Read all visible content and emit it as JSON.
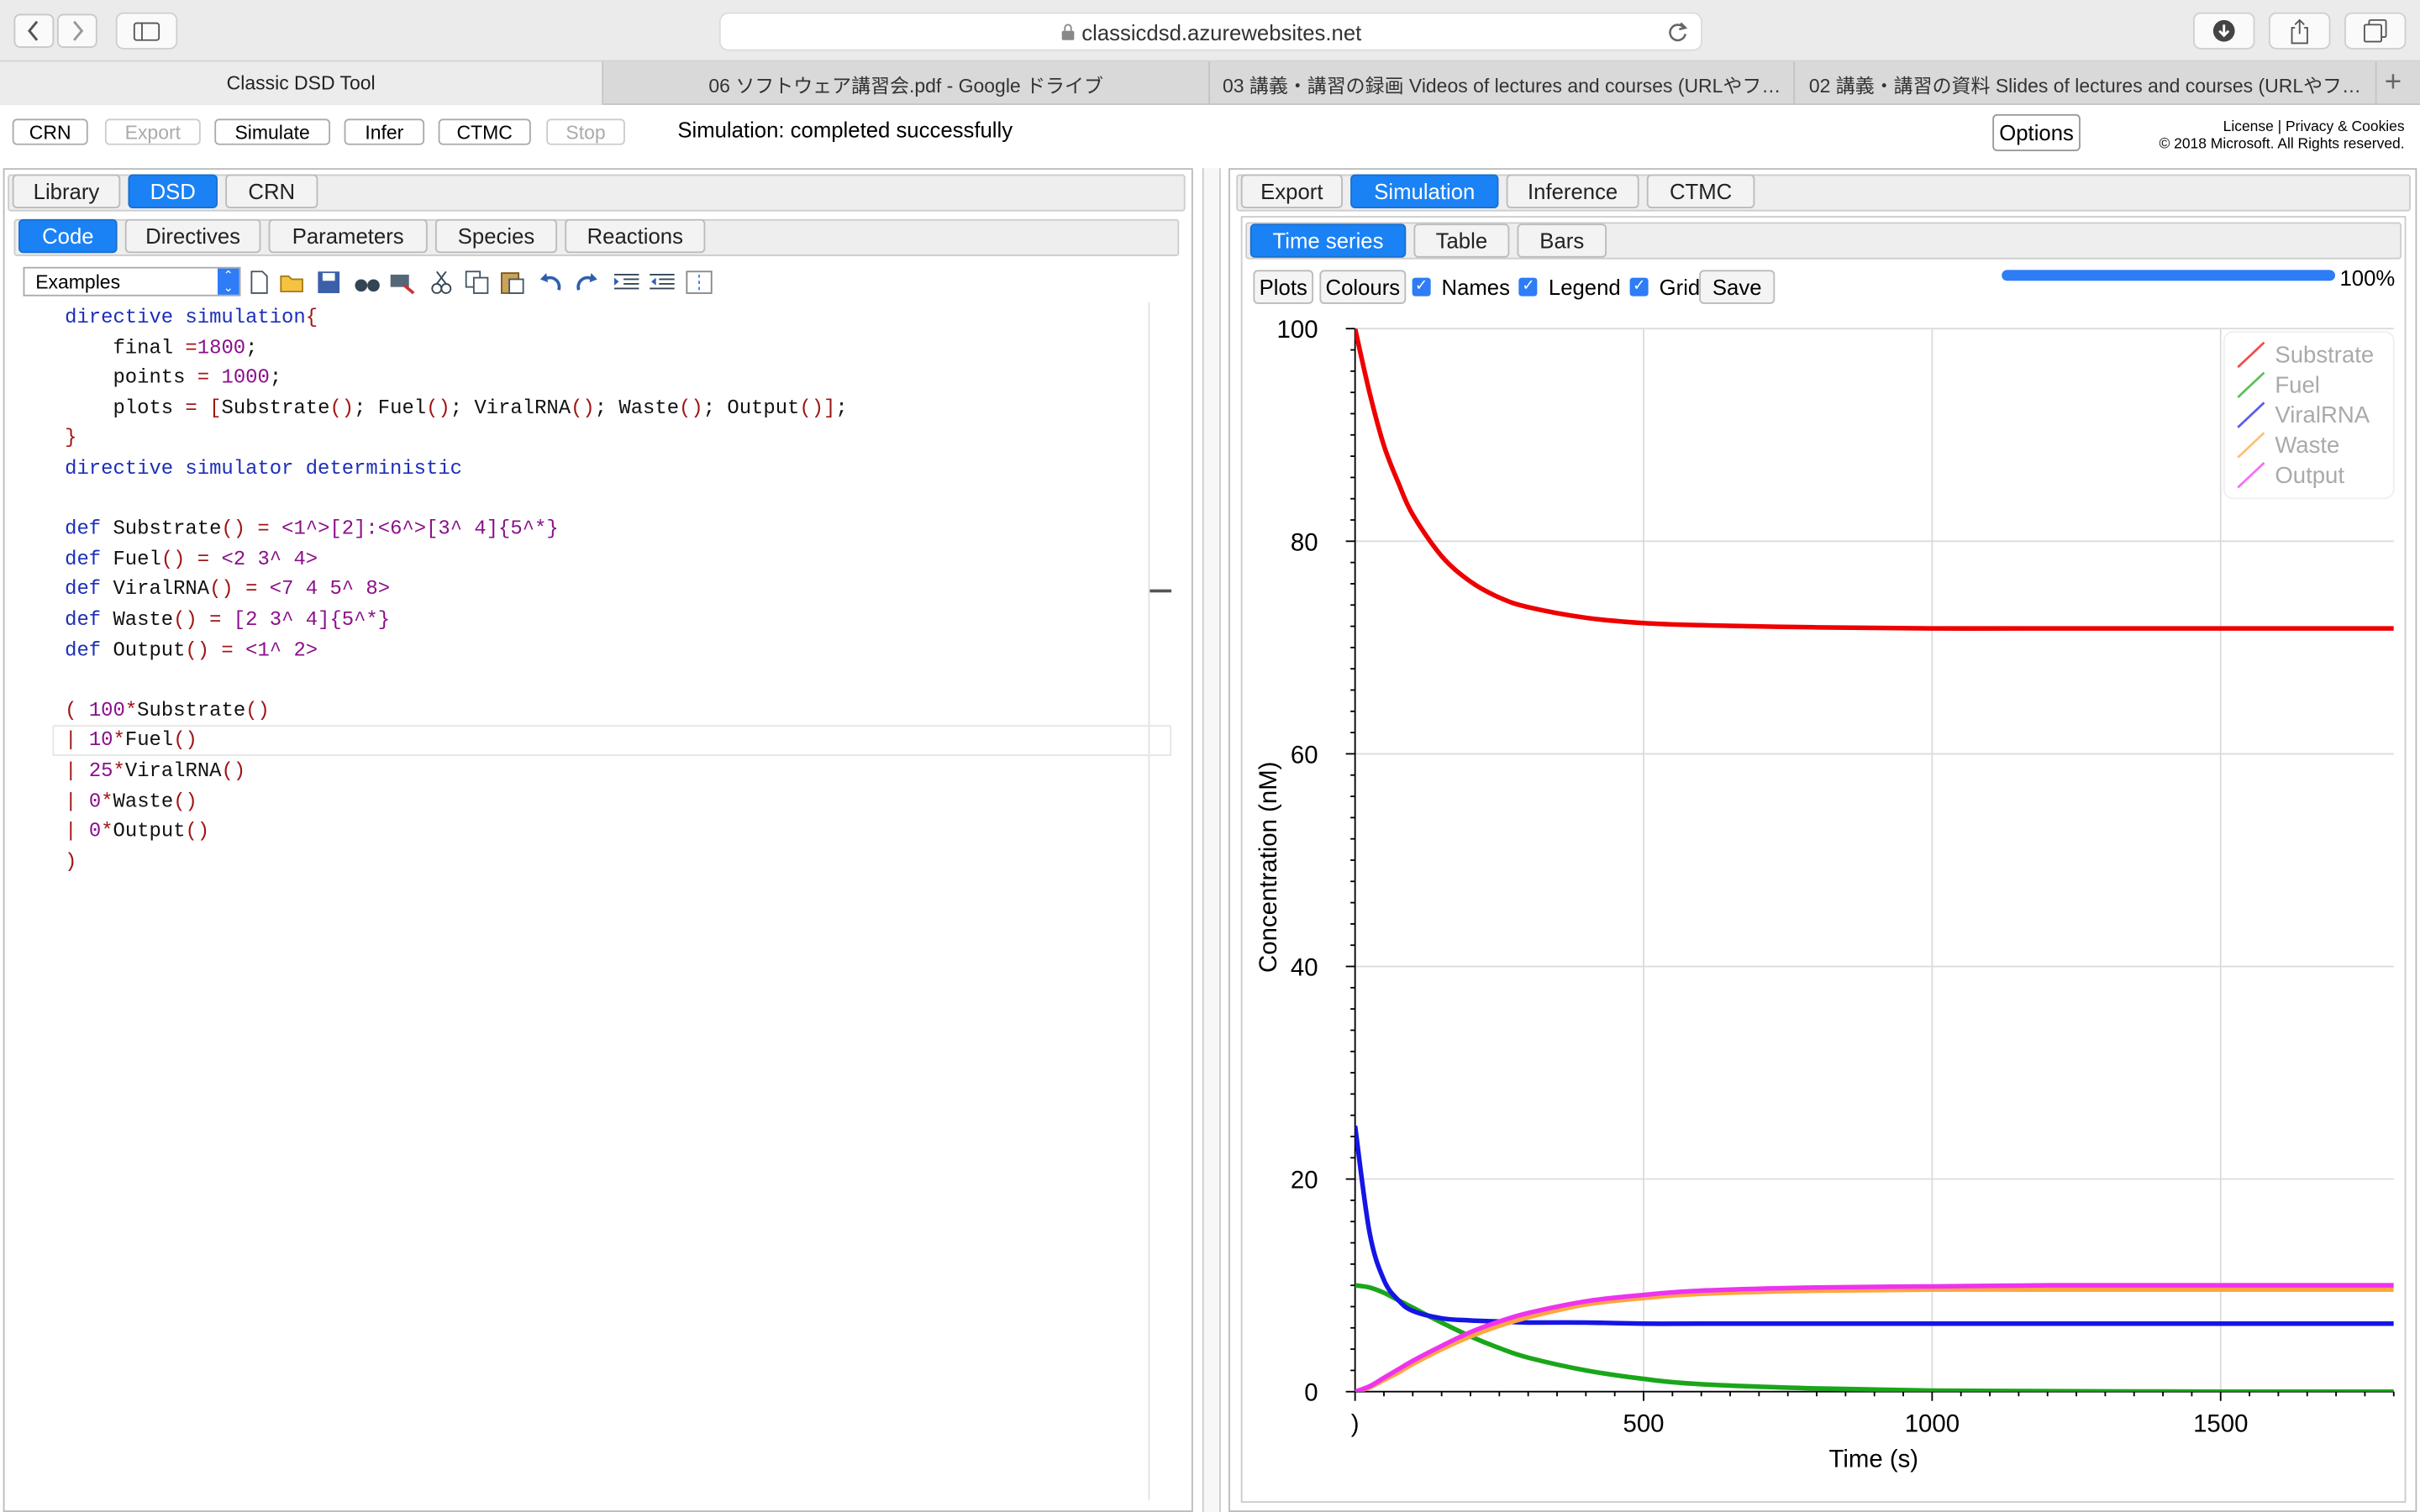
{
  "browser": {
    "url": "classicdsd.azurewebsites.net",
    "tabs": [
      "Classic DSD Tool",
      "06 ソフトウェア講習会.pdf - Google ドライブ",
      "03 講義・講習の録画 Videos of lectures and courses (URLやフ…",
      "02 講義・講習の資料 Slides of lectures and courses (URLやフ…"
    ]
  },
  "app": {
    "buttons": [
      "CRN",
      "Export",
      "Simulate",
      "Infer",
      "CTMC",
      "Stop"
    ],
    "status": "Simulation: completed successfully",
    "options_label": "Options",
    "license": "License",
    "privacy": "Privacy & Cookies",
    "copyright": "© 2018 Microsoft. All Rights reserved."
  },
  "left": {
    "tabs": [
      "Library",
      "DSD",
      "CRN"
    ],
    "subtabs": [
      "Code",
      "Directives",
      "Parameters",
      "Species",
      "Reactions"
    ],
    "examples_label": "Examples"
  },
  "right": {
    "tabs": [
      "Export",
      "Simulation",
      "Inference",
      "CTMC"
    ],
    "subtabs": [
      "Time series",
      "Table",
      "Bars"
    ],
    "plots_label": "Plots",
    "colours_label": "Colours",
    "names_label": "Names",
    "legend_label": "Legend",
    "grid_label": "Grid",
    "save_label": "Save",
    "progress": 100,
    "progress_label": "100%"
  },
  "chart_data": {
    "type": "line",
    "title": "",
    "xlabel": "Time (s)",
    "ylabel": "Concentration (nM)",
    "xlim": [
      0,
      1800
    ],
    "ylim": [
      0,
      100
    ],
    "xticks": [
      0,
      500,
      1000,
      1500
    ],
    "yticks": [
      0,
      20,
      40,
      60,
      80,
      100
    ],
    "xtick_labels": [
      ")",
      "500",
      "1000",
      "1500"
    ],
    "ytick_labels": [
      "0",
      "20",
      "40",
      "60",
      "80",
      "100"
    ],
    "grid": true,
    "legend_position": "top-right",
    "series": [
      {
        "name": "Substrate",
        "color": "#ee0000",
        "x": [
          0,
          25,
          50,
          75,
          100,
          150,
          200,
          250,
          300,
          400,
          500,
          600,
          800,
          1000,
          1200,
          1500,
          1800
        ],
        "y": [
          100,
          94,
          89,
          85.5,
          82.5,
          78.6,
          76.2,
          74.7,
          73.8,
          72.8,
          72.3,
          72.1,
          71.9,
          71.8,
          71.8,
          71.8,
          71.8
        ]
      },
      {
        "name": "Fuel",
        "color": "#1aa61a",
        "x": [
          0,
          25,
          50,
          75,
          100,
          150,
          200,
          250,
          300,
          400,
          500,
          600,
          800,
          1000,
          1200,
          1500,
          1800
        ],
        "y": [
          10,
          9.8,
          9.3,
          8.6,
          7.9,
          6.5,
          5.2,
          4.1,
          3.2,
          2.0,
          1.2,
          0.7,
          0.3,
          0.1,
          0.05,
          0,
          0
        ]
      },
      {
        "name": "ViralRNA",
        "color": "#1515e6",
        "x": [
          0,
          25,
          50,
          75,
          100,
          150,
          200,
          250,
          300,
          400,
          500,
          600,
          800,
          1000,
          1200,
          1500,
          1800
        ],
        "y": [
          25,
          15,
          10.5,
          8.6,
          7.6,
          6.9,
          6.7,
          6.6,
          6.5,
          6.5,
          6.4,
          6.4,
          6.4,
          6.4,
          6.4,
          6.4,
          6.4
        ]
      },
      {
        "name": "Waste",
        "color": "#ffa640",
        "x": [
          0,
          25,
          50,
          75,
          100,
          150,
          200,
          250,
          300,
          400,
          500,
          600,
          800,
          1000,
          1200,
          1500,
          1800
        ],
        "y": [
          0,
          0.4,
          1.1,
          1.8,
          2.6,
          4.0,
          5.2,
          6.2,
          7.0,
          8.2,
          8.8,
          9.2,
          9.5,
          9.6,
          9.6,
          9.6,
          9.6
        ]
      },
      {
        "name": "Output",
        "color": "#ee33ee",
        "x": [
          0,
          25,
          50,
          75,
          100,
          150,
          200,
          250,
          300,
          400,
          500,
          600,
          800,
          1000,
          1200,
          1500,
          1800
        ],
        "y": [
          0,
          0.5,
          1.3,
          2.1,
          2.9,
          4.3,
          5.6,
          6.6,
          7.4,
          8.5,
          9.1,
          9.5,
          9.8,
          9.9,
          10.0,
          10.0,
          10.0
        ]
      }
    ]
  }
}
